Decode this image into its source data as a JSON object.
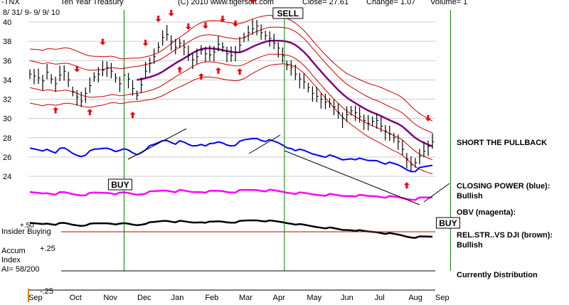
{
  "chart_data": {
    "type": "line",
    "header": {
      "ticker": "-TNX",
      "name": "Ten Year Treasury",
      "site": "(C) 2010 www.tigersoft.com",
      "close": "Close=  27.61",
      "change": "Change= 1.07",
      "volume": "Volume= 1",
      "date_range": "8/ 31/ 9-  9/ 9/ 10"
    },
    "price_axis": {
      "ylim": [
        22,
        41
      ],
      "ticks": [
        40,
        38,
        36,
        34,
        32,
        30,
        28,
        26,
        24
      ]
    },
    "months": [
      "Sep",
      "Oct",
      "Nov",
      "Dec",
      "Jan",
      "Feb",
      "Mar",
      "Apr",
      "May",
      "Jun",
      "Jul",
      "Aug",
      "Sep"
    ],
    "price_series": {
      "name": "Ten Year Treasury",
      "close": [
        34.6,
        34.4,
        34.2,
        33.9,
        34.8,
        34.1,
        33.6,
        34.5,
        34.9,
        34.0,
        32.8,
        32.2,
        31.8,
        32.6,
        33.4,
        34.3,
        34.6,
        35.0,
        35.3,
        34.9,
        34.2,
        33.6,
        34.5,
        34.1,
        33.1,
        32.4,
        33.5,
        34.9,
        35.7,
        36.4,
        37.4,
        38.4,
        38.7,
        38.0,
        37.4,
        37.8,
        37.4,
        36.6,
        36.1,
        36.4,
        37.1,
        36.7,
        36.6,
        36.9,
        37.7,
        37.4,
        36.7,
        36.5,
        36.9,
        37.6,
        38.4,
        38.9,
        39.3,
        39.6,
        38.9,
        38.6,
        38.3,
        37.8,
        37.3,
        36.5,
        35.5,
        35.3,
        34.6,
        34.1,
        33.8,
        33.2,
        32.6,
        32.3,
        32.0,
        31.7,
        31.6,
        31.2,
        30.6,
        30.0,
        30.4,
        30.8,
        30.6,
        30.2,
        29.8,
        29.5,
        29.7,
        29.8,
        29.2,
        28.7,
        28.4,
        28.0,
        27.6,
        26.8,
        25.8,
        25.2,
        25.4,
        26.1,
        26.6,
        27.1,
        27.6
      ]
    },
    "bands": {
      "upper_color": "#cc0000",
      "lower_color": "#cc0000",
      "mid_color": "#cc0000",
      "ma_color": "#800080"
    },
    "signals": [
      {
        "label": "BUY",
        "month_pos": 2.82,
        "panel": "closing-power"
      },
      {
        "label": "SELL",
        "month_pos": 7.55,
        "panel": "price"
      },
      {
        "label": "BUY",
        "month_pos": 12.45,
        "panel": "obv"
      }
    ],
    "indicators": {
      "closing_power_color": "#0000ff",
      "obv_color": "#ff00ff",
      "rel_str_color": "#000000"
    },
    "insider": {
      "label": "Insider Buying",
      "plus50": "+.50",
      "plus25": "+.25",
      "minus25": "-.25"
    },
    "accum": {
      "line1": "Accum",
      "line2": "Index",
      "line3": "AI= 58/200"
    },
    "annotations": {
      "short_pullback": "SHORT THE PULLBACK",
      "closing_power": "CLOSING POWER (blue):",
      "closing_power_state": "Bullish",
      "obv": "OBV (magenta):",
      "rel_str": "REL.STR..VS DJI (brown):",
      "rel_str_state": "Bullish",
      "distribution": "Currently Distribution"
    }
  }
}
